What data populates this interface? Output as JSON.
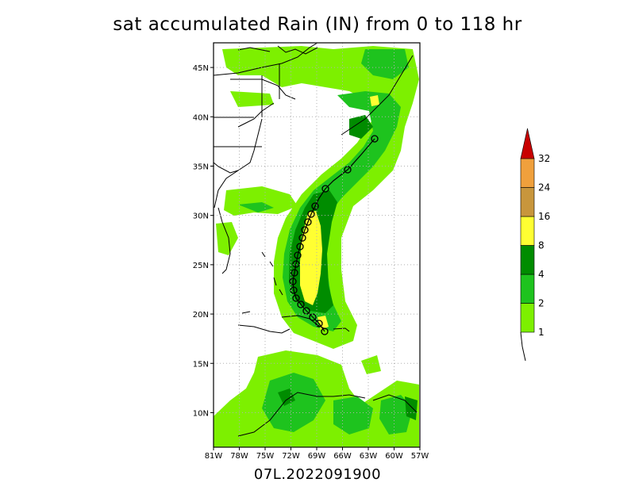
{
  "title": "sat accumulated Rain (IN) from 0 to 118 hr",
  "storm_id": "07L.2022091900",
  "map": {
    "lat_labels": [
      "45N",
      "40N",
      "35N",
      "30N",
      "25N",
      "20N",
      "15N",
      "10N"
    ],
    "lat_values": [
      45,
      40,
      35,
      30,
      25,
      20,
      15,
      10
    ],
    "lon_labels": [
      "81W",
      "78W",
      "75W",
      "72W",
      "69W",
      "66W",
      "63W",
      "60W",
      "57W"
    ],
    "lon_values": [
      -81,
      -78,
      -75,
      -72,
      -69,
      -66,
      -63,
      -60,
      -57
    ],
    "lat_range": [
      6.5,
      47.5
    ],
    "lon_range": [
      -81,
      -57
    ],
    "grid": "dotted",
    "track_marker": "tropical-storm-symbol"
  },
  "colorbar": {
    "levels": [
      "1",
      "2",
      "4",
      "8",
      "16",
      "24",
      "32"
    ],
    "colors": [
      "#7df000",
      "#1ec31e",
      "#008c00",
      "#ffff32",
      "#c8963c",
      "#f0a03c",
      "#c80000"
    ]
  }
}
